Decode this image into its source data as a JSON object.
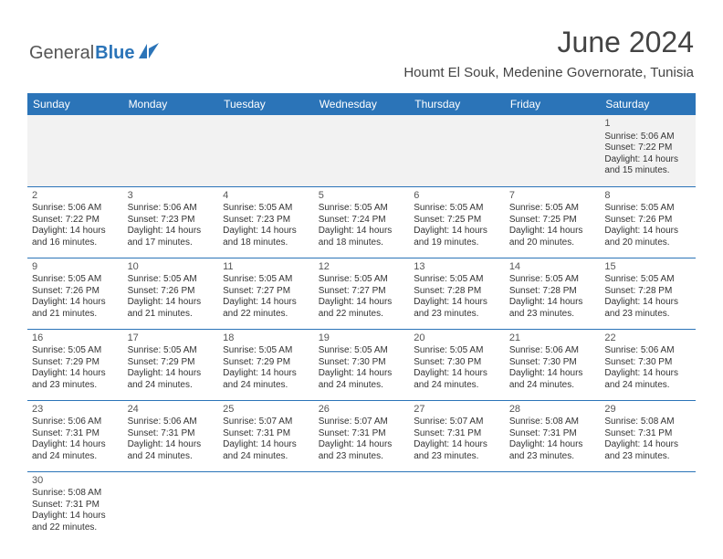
{
  "brand": {
    "part1": "General",
    "part2": "Blue"
  },
  "title": "June 2024",
  "location": "Houmt El Souk, Medenine Governorate, Tunisia",
  "colors": {
    "header_bg": "#2b74b8",
    "header_text": "#ffffff",
    "border": "#2b74b8",
    "logo_blue": "#2b74b8",
    "text": "#333333",
    "muted_bg": "#f2f2f2"
  },
  "typography": {
    "title_fontsize": 32,
    "location_fontsize": 15,
    "dayhead_fontsize": 12,
    "cell_fontsize": 10
  },
  "day_headers": [
    "Sunday",
    "Monday",
    "Tuesday",
    "Wednesday",
    "Thursday",
    "Friday",
    "Saturday"
  ],
  "weeks": [
    [
      null,
      null,
      null,
      null,
      null,
      null,
      {
        "day": "1",
        "sunrise": "Sunrise: 5:06 AM",
        "sunset": "Sunset: 7:22 PM",
        "daylight": "Daylight: 14 hours and 15 minutes."
      }
    ],
    [
      {
        "day": "2",
        "sunrise": "Sunrise: 5:06 AM",
        "sunset": "Sunset: 7:22 PM",
        "daylight": "Daylight: 14 hours and 16 minutes."
      },
      {
        "day": "3",
        "sunrise": "Sunrise: 5:06 AM",
        "sunset": "Sunset: 7:23 PM",
        "daylight": "Daylight: 14 hours and 17 minutes."
      },
      {
        "day": "4",
        "sunrise": "Sunrise: 5:05 AM",
        "sunset": "Sunset: 7:23 PM",
        "daylight": "Daylight: 14 hours and 18 minutes."
      },
      {
        "day": "5",
        "sunrise": "Sunrise: 5:05 AM",
        "sunset": "Sunset: 7:24 PM",
        "daylight": "Daylight: 14 hours and 18 minutes."
      },
      {
        "day": "6",
        "sunrise": "Sunrise: 5:05 AM",
        "sunset": "Sunset: 7:25 PM",
        "daylight": "Daylight: 14 hours and 19 minutes."
      },
      {
        "day": "7",
        "sunrise": "Sunrise: 5:05 AM",
        "sunset": "Sunset: 7:25 PM",
        "daylight": "Daylight: 14 hours and 20 minutes."
      },
      {
        "day": "8",
        "sunrise": "Sunrise: 5:05 AM",
        "sunset": "Sunset: 7:26 PM",
        "daylight": "Daylight: 14 hours and 20 minutes."
      }
    ],
    [
      {
        "day": "9",
        "sunrise": "Sunrise: 5:05 AM",
        "sunset": "Sunset: 7:26 PM",
        "daylight": "Daylight: 14 hours and 21 minutes."
      },
      {
        "day": "10",
        "sunrise": "Sunrise: 5:05 AM",
        "sunset": "Sunset: 7:26 PM",
        "daylight": "Daylight: 14 hours and 21 minutes."
      },
      {
        "day": "11",
        "sunrise": "Sunrise: 5:05 AM",
        "sunset": "Sunset: 7:27 PM",
        "daylight": "Daylight: 14 hours and 22 minutes."
      },
      {
        "day": "12",
        "sunrise": "Sunrise: 5:05 AM",
        "sunset": "Sunset: 7:27 PM",
        "daylight": "Daylight: 14 hours and 22 minutes."
      },
      {
        "day": "13",
        "sunrise": "Sunrise: 5:05 AM",
        "sunset": "Sunset: 7:28 PM",
        "daylight": "Daylight: 14 hours and 23 minutes."
      },
      {
        "day": "14",
        "sunrise": "Sunrise: 5:05 AM",
        "sunset": "Sunset: 7:28 PM",
        "daylight": "Daylight: 14 hours and 23 minutes."
      },
      {
        "day": "15",
        "sunrise": "Sunrise: 5:05 AM",
        "sunset": "Sunset: 7:28 PM",
        "daylight": "Daylight: 14 hours and 23 minutes."
      }
    ],
    [
      {
        "day": "16",
        "sunrise": "Sunrise: 5:05 AM",
        "sunset": "Sunset: 7:29 PM",
        "daylight": "Daylight: 14 hours and 23 minutes."
      },
      {
        "day": "17",
        "sunrise": "Sunrise: 5:05 AM",
        "sunset": "Sunset: 7:29 PM",
        "daylight": "Daylight: 14 hours and 24 minutes."
      },
      {
        "day": "18",
        "sunrise": "Sunrise: 5:05 AM",
        "sunset": "Sunset: 7:29 PM",
        "daylight": "Daylight: 14 hours and 24 minutes."
      },
      {
        "day": "19",
        "sunrise": "Sunrise: 5:05 AM",
        "sunset": "Sunset: 7:30 PM",
        "daylight": "Daylight: 14 hours and 24 minutes."
      },
      {
        "day": "20",
        "sunrise": "Sunrise: 5:05 AM",
        "sunset": "Sunset: 7:30 PM",
        "daylight": "Daylight: 14 hours and 24 minutes."
      },
      {
        "day": "21",
        "sunrise": "Sunrise: 5:06 AM",
        "sunset": "Sunset: 7:30 PM",
        "daylight": "Daylight: 14 hours and 24 minutes."
      },
      {
        "day": "22",
        "sunrise": "Sunrise: 5:06 AM",
        "sunset": "Sunset: 7:30 PM",
        "daylight": "Daylight: 14 hours and 24 minutes."
      }
    ],
    [
      {
        "day": "23",
        "sunrise": "Sunrise: 5:06 AM",
        "sunset": "Sunset: 7:31 PM",
        "daylight": "Daylight: 14 hours and 24 minutes."
      },
      {
        "day": "24",
        "sunrise": "Sunrise: 5:06 AM",
        "sunset": "Sunset: 7:31 PM",
        "daylight": "Daylight: 14 hours and 24 minutes."
      },
      {
        "day": "25",
        "sunrise": "Sunrise: 5:07 AM",
        "sunset": "Sunset: 7:31 PM",
        "daylight": "Daylight: 14 hours and 24 minutes."
      },
      {
        "day": "26",
        "sunrise": "Sunrise: 5:07 AM",
        "sunset": "Sunset: 7:31 PM",
        "daylight": "Daylight: 14 hours and 23 minutes."
      },
      {
        "day": "27",
        "sunrise": "Sunrise: 5:07 AM",
        "sunset": "Sunset: 7:31 PM",
        "daylight": "Daylight: 14 hours and 23 minutes."
      },
      {
        "day": "28",
        "sunrise": "Sunrise: 5:08 AM",
        "sunset": "Sunset: 7:31 PM",
        "daylight": "Daylight: 14 hours and 23 minutes."
      },
      {
        "day": "29",
        "sunrise": "Sunrise: 5:08 AM",
        "sunset": "Sunset: 7:31 PM",
        "daylight": "Daylight: 14 hours and 23 minutes."
      }
    ],
    [
      {
        "day": "30",
        "sunrise": "Sunrise: 5:08 AM",
        "sunset": "Sunset: 7:31 PM",
        "daylight": "Daylight: 14 hours and 22 minutes."
      },
      null,
      null,
      null,
      null,
      null,
      null
    ]
  ]
}
